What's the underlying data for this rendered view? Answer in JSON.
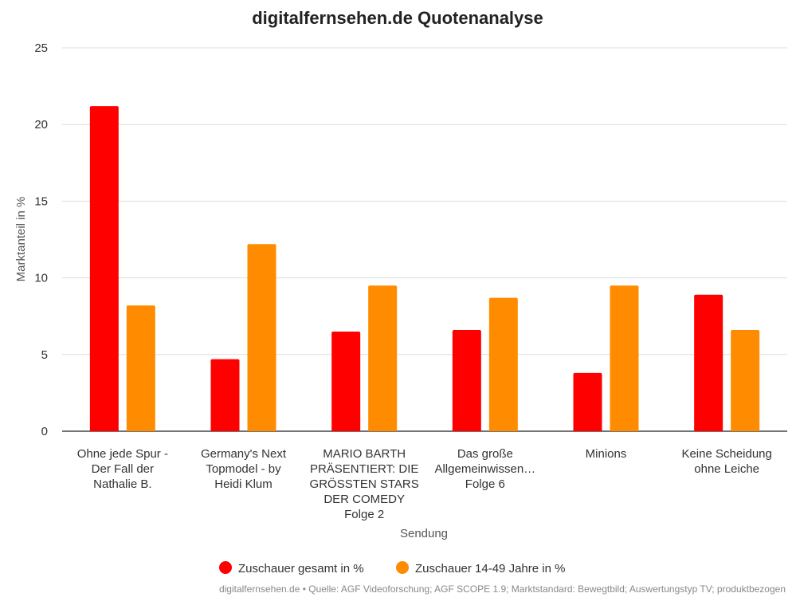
{
  "chart_data": {
    "type": "bar",
    "title": "digitalfernsehen.de Quotenanalyse",
    "xlabel": "Sendung",
    "ylabel": "Marktanteil in %",
    "ylim": [
      0,
      25
    ],
    "yticks": [
      0,
      5,
      10,
      15,
      20,
      25
    ],
    "grid": true,
    "legend_position": "bottom-center",
    "categories": [
      [
        "Ohne jede Spur -",
        "Der Fall der",
        "Nathalie B."
      ],
      [
        "Germany's Next",
        "Topmodel - by",
        "Heidi Klum"
      ],
      [
        "MARIO BARTH",
        "PRÄSENTIERT: DIE",
        "GRÖSSTEN STARS",
        "DER COMEDY",
        "Folge 2"
      ],
      [
        "Das große",
        "Allgemeinwissen…",
        "Folge 6"
      ],
      [
        "Minions"
      ],
      [
        "Keine Scheidung",
        "ohne Leiche"
      ]
    ],
    "series": [
      {
        "name": "Zuschauer gesamt in %",
        "color": "#ff0000",
        "values": [
          21.2,
          4.7,
          6.5,
          6.6,
          3.8,
          8.9
        ]
      },
      {
        "name": "Zuschauer 14-49 Jahre in %",
        "color": "#ff8c00",
        "values": [
          8.2,
          12.2,
          9.5,
          8.7,
          9.5,
          6.6
        ]
      }
    ],
    "source": "digitalfernsehen.de • Quelle: AGF Videoforschung; AGF SCOPE 1.9; Marktstandard: Bewegtbild; Auswertungstyp TV; produktbezogen"
  }
}
